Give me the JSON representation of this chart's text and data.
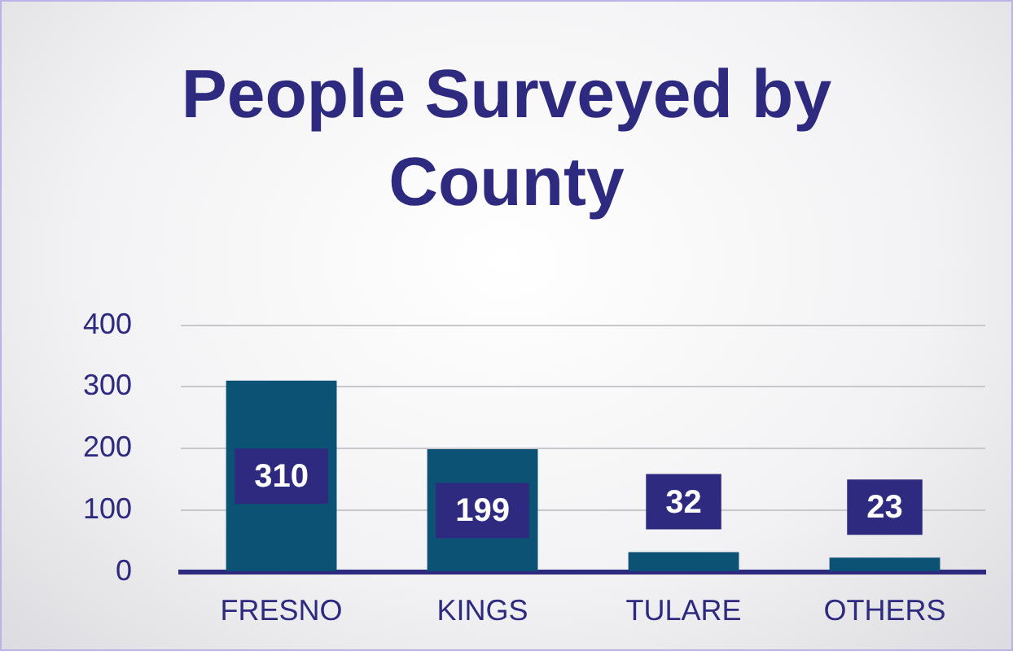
{
  "chart_data": {
    "type": "bar",
    "title": "People Surveyed by County",
    "categories": [
      "FRESNO",
      "KINGS",
      "TULARE",
      "OTHERS"
    ],
    "values": [
      310,
      199,
      32,
      23
    ],
    "color": "#0b5275",
    "ylim": [
      0,
      400
    ],
    "yticks": [
      0,
      100,
      200,
      300,
      400
    ],
    "grid": "y",
    "data_labels": true
  }
}
